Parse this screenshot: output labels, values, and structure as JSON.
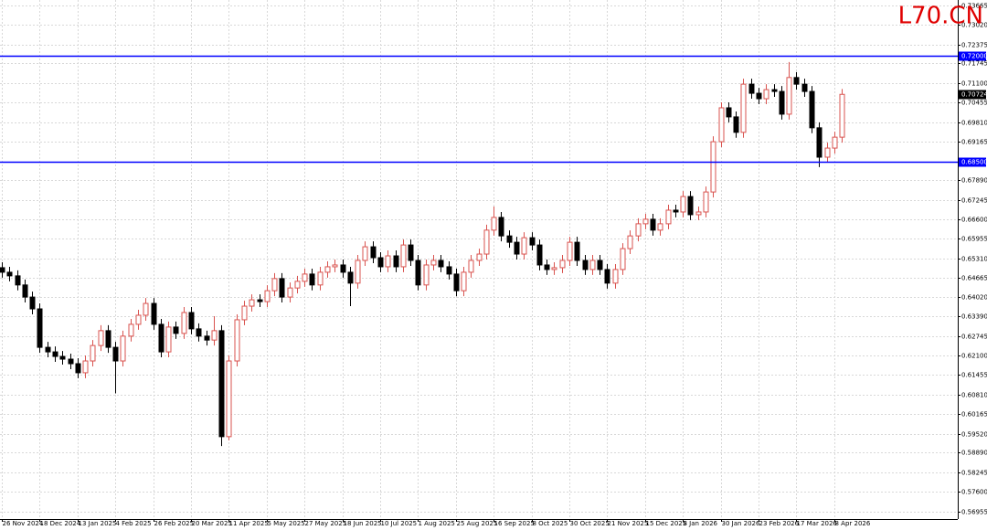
{
  "chart_data": {
    "type": "candlestick",
    "watermark": "L70.CN",
    "categories": [
      "26 Nov 2024",
      null,
      null,
      null,
      null,
      "18 Dec 2024",
      null,
      null,
      null,
      null,
      "13 Jan 2025",
      null,
      null,
      null,
      null,
      "4 Feb 2025",
      null,
      null,
      null,
      null,
      "26 Feb 2025",
      null,
      null,
      null,
      null,
      "20 Mar 2025",
      null,
      null,
      null,
      null,
      "11 Apr 2025",
      null,
      null,
      null,
      null,
      "5 May 2025",
      null,
      null,
      null,
      null,
      "27 May 2025",
      null,
      null,
      null,
      null,
      "18 Jun 2025",
      null,
      null,
      null,
      null,
      "10 Jul 2025",
      null,
      null,
      null,
      null,
      "1 Aug 2025",
      null,
      null,
      null,
      null,
      "25 Aug 2025",
      null,
      null,
      null,
      null,
      "16 Sep 2025",
      null,
      null,
      null,
      null,
      "8 Oct 2025",
      null,
      null,
      null,
      null,
      "30 Oct 2025",
      null,
      null,
      null,
      null,
      "21 Nov 2025",
      null,
      null,
      null,
      null,
      "15 Dec 2025",
      null,
      null,
      null,
      null,
      "8 Jan 2026",
      null,
      null,
      null,
      null,
      "30 Jan 2026",
      null,
      null,
      null,
      null,
      "23 Feb 2026",
      null,
      null,
      null,
      null,
      "17 Mar 2026",
      null,
      null,
      null,
      null,
      "8 Apr 2026",
      null
    ],
    "open": [
      0.65,
      0.6485,
      0.6473,
      0.6443,
      0.6403,
      0.6364,
      0.6237,
      0.6222,
      0.6207,
      0.6198,
      0.6183,
      0.6153,
      0.6192,
      0.6243,
      0.6292,
      0.6237,
      0.6192,
      0.6274,
      0.6313,
      0.6343,
      0.6382,
      0.6313,
      0.6222,
      0.6304,
      0.6283,
      0.6352,
      0.6298,
      0.6274,
      0.6261,
      0.6292,
      0.5942,
      0.6192,
      0.6328,
      0.6373,
      0.6394,
      0.6388,
      0.6424,
      0.6464,
      0.6403,
      0.6433,
      0.6455,
      0.6479,
      0.6443,
      0.6485,
      0.6503,
      0.6509,
      0.6485,
      0.6449,
      0.6524,
      0.6569,
      0.6533,
      0.6503,
      0.6539,
      0.6503,
      0.6575,
      0.6524,
      0.6443,
      0.6509,
      0.6524,
      0.6503,
      0.6479,
      0.6424,
      0.6485,
      0.6524,
      0.6545,
      0.6624,
      0.6666,
      0.6605,
      0.6584,
      0.6545,
      0.6599,
      0.6575,
      0.6509,
      0.6494,
      0.65,
      0.6524,
      0.6584,
      0.6524,
      0.6494,
      0.6524,
      0.6494,
      0.6449,
      0.6494,
      0.6563,
      0.6605,
      0.6645,
      0.666,
      0.6624,
      0.6645,
      0.669,
      0.6684,
      0.6735,
      0.6675,
      0.6684,
      0.675,
      0.6916,
      0.7028,
      0.6998,
      0.6947,
      0.7106,
      0.7076,
      0.7058,
      0.7088,
      0.7082,
      0.7007,
      0.7128,
      0.7106,
      0.7082,
      0.6962,
      0.6865,
      0.6895,
      0.6931
    ],
    "high": [
      0.6518,
      0.6503,
      0.6491,
      0.6461,
      0.6421,
      0.6382,
      0.6255,
      0.624,
      0.6225,
      0.6216,
      0.6201,
      0.621,
      0.6261,
      0.631,
      0.631,
      0.6255,
      0.6292,
      0.6331,
      0.6361,
      0.64,
      0.64,
      0.6331,
      0.6322,
      0.6322,
      0.637,
      0.637,
      0.6316,
      0.6292,
      0.634,
      0.631,
      0.621,
      0.6346,
      0.6391,
      0.6412,
      0.6412,
      0.6442,
      0.6482,
      0.6482,
      0.6451,
      0.6473,
      0.6497,
      0.6497,
      0.6503,
      0.6521,
      0.6527,
      0.6527,
      0.6503,
      0.6542,
      0.6587,
      0.6587,
      0.6551,
      0.6557,
      0.6557,
      0.6593,
      0.6593,
      0.6542,
      0.6527,
      0.6542,
      0.6542,
      0.6521,
      0.6497,
      0.6503,
      0.6542,
      0.6563,
      0.6642,
      0.6702,
      0.6684,
      0.6623,
      0.6602,
      0.6617,
      0.6617,
      0.6593,
      0.6527,
      0.6518,
      0.6542,
      0.6602,
      0.6602,
      0.6542,
      0.6542,
      0.6542,
      0.6512,
      0.6512,
      0.6581,
      0.6623,
      0.6663,
      0.6678,
      0.6678,
      0.6663,
      0.6708,
      0.6708,
      0.6753,
      0.6753,
      0.6702,
      0.6768,
      0.6934,
      0.7046,
      0.7046,
      0.7016,
      0.7124,
      0.7124,
      0.7094,
      0.7106,
      0.7106,
      0.71,
      0.7179,
      0.7146,
      0.7124,
      0.71,
      0.698,
      0.6913,
      0.6949,
      0.709
    ],
    "low": [
      0.6467,
      0.6455,
      0.6425,
      0.6385,
      0.6346,
      0.6219,
      0.6204,
      0.6189,
      0.618,
      0.6165,
      0.6135,
      0.6135,
      0.6174,
      0.6225,
      0.6219,
      0.6085,
      0.6174,
      0.6256,
      0.6295,
      0.6325,
      0.6295,
      0.6204,
      0.6204,
      0.6265,
      0.6265,
      0.628,
      0.6256,
      0.6243,
      0.6243,
      0.5911,
      0.593,
      0.6174,
      0.631,
      0.6355,
      0.637,
      0.637,
      0.6406,
      0.6385,
      0.6385,
      0.6415,
      0.6437,
      0.6425,
      0.6425,
      0.6467,
      0.6485,
      0.6467,
      0.6373,
      0.6431,
      0.6506,
      0.6515,
      0.6485,
      0.6485,
      0.6485,
      0.6485,
      0.6506,
      0.6425,
      0.6425,
      0.6491,
      0.6485,
      0.6461,
      0.6406,
      0.6406,
      0.6467,
      0.6506,
      0.6527,
      0.6606,
      0.6587,
      0.6566,
      0.6527,
      0.6527,
      0.6557,
      0.6491,
      0.6476,
      0.6476,
      0.6482,
      0.6506,
      0.6506,
      0.6476,
      0.6476,
      0.6476,
      0.6431,
      0.6431,
      0.6476,
      0.6545,
      0.6587,
      0.6627,
      0.6606,
      0.6606,
      0.6627,
      0.6666,
      0.6666,
      0.6657,
      0.6657,
      0.6666,
      0.6732,
      0.6898,
      0.698,
      0.6929,
      0.6929,
      0.7058,
      0.704,
      0.704,
      0.7064,
      0.6989,
      0.6989,
      0.7088,
      0.7064,
      0.6944,
      0.6832,
      0.6847,
      0.6877,
      0.6913
    ],
    "close": [
      0.6485,
      0.6473,
      0.6443,
      0.6403,
      0.6364,
      0.6237,
      0.6222,
      0.6207,
      0.6198,
      0.6183,
      0.6153,
      0.6192,
      0.6243,
      0.6292,
      0.6237,
      0.6192,
      0.6274,
      0.6313,
      0.6343,
      0.6382,
      0.6313,
      0.6222,
      0.6304,
      0.6283,
      0.6352,
      0.6298,
      0.6274,
      0.6261,
      0.6292,
      0.5942,
      0.6192,
      0.6328,
      0.6373,
      0.6394,
      0.6388,
      0.6424,
      0.6464,
      0.6403,
      0.6433,
      0.6455,
      0.6479,
      0.6443,
      0.6485,
      0.6503,
      0.6509,
      0.6485,
      0.6449,
      0.6524,
      0.6569,
      0.6533,
      0.6503,
      0.6539,
      0.6503,
      0.6575,
      0.6524,
      0.6443,
      0.6509,
      0.6524,
      0.6503,
      0.6479,
      0.6424,
      0.6485,
      0.6524,
      0.6545,
      0.6624,
      0.6666,
      0.6605,
      0.6584,
      0.6545,
      0.6599,
      0.6575,
      0.6509,
      0.6494,
      0.65,
      0.6524,
      0.6584,
      0.6524,
      0.6494,
      0.6524,
      0.6494,
      0.6449,
      0.6494,
      0.6563,
      0.6605,
      0.6645,
      0.666,
      0.6624,
      0.6645,
      0.669,
      0.6684,
      0.6735,
      0.6675,
      0.6684,
      0.675,
      0.6916,
      0.7028,
      0.6998,
      0.6947,
      0.7106,
      0.7076,
      0.7058,
      0.7088,
      0.7082,
      0.7007,
      0.7128,
      0.7106,
      0.7082,
      0.6962,
      0.6865,
      0.6895,
      0.6931,
      0.70724
    ],
    "up_color": "#d9534f",
    "down_color": "#000000",
    "ylim": [
      0.567,
      0.7384
    ],
    "yticks": [
      0.73665,
      {
        "value": 0.7302,
        "label": "0.73020"
      },
      0.72375,
      0.71745,
      {
        "value": 0.711,
        "label": "0.71100"
      },
      0.70455,
      {
        "value": 0.6981,
        "label": "0.69810"
      },
      0.69165,
      {
        "value": 0.6789,
        "label": "0.67890"
      },
      0.67245,
      {
        "value": 0.666,
        "label": "0.66600"
      },
      0.65955,
      {
        "value": 0.6531,
        "label": "0.65310"
      },
      0.64665,
      {
        "value": 0.6402,
        "label": "0.64020"
      },
      {
        "value": 0.6339,
        "label": "0.63390"
      },
      0.62745,
      {
        "value": 0.621,
        "label": "0.62100"
      },
      0.61455,
      {
        "value": 0.6081,
        "label": "0.60810"
      },
      0.60165,
      {
        "value": 0.5952,
        "label": "0.59520"
      },
      {
        "value": 0.5889,
        "label": "0.58890"
      },
      0.58245,
      {
        "value": 0.576,
        "label": "0.57600"
      },
      0.56955
    ],
    "grid": true,
    "hlines": [
      {
        "value": 0.72,
        "label": "0.72000"
      },
      {
        "value": 0.685,
        "label": "0.68500"
      }
    ],
    "hline_color": "#0000ff",
    "current_price": {
      "value": 0.70724,
      "label": "0.70724"
    }
  }
}
